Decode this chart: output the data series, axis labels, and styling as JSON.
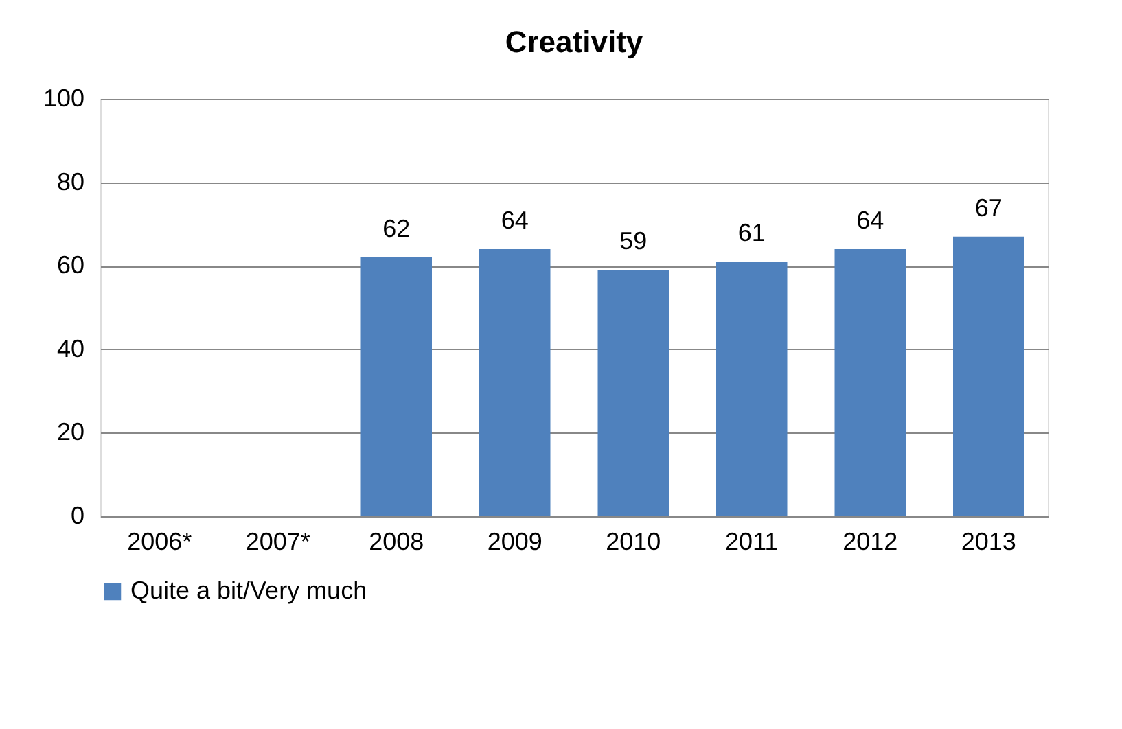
{
  "chart_data": {
    "type": "bar",
    "title": "Creativity",
    "categories": [
      "2006*",
      "2007*",
      "2008",
      "2009",
      "2010",
      "2011",
      "2012",
      "2013"
    ],
    "series": [
      {
        "name": "Quite a bit/Very much",
        "color": "#4f81bd",
        "values": [
          null,
          null,
          62,
          64,
          59,
          61,
          64,
          67
        ]
      }
    ],
    "ylim": [
      0,
      100
    ],
    "yticks": [
      0,
      20,
      40,
      60,
      80,
      100
    ],
    "grid": "y",
    "legend": "bottom",
    "data_labels": true
  }
}
